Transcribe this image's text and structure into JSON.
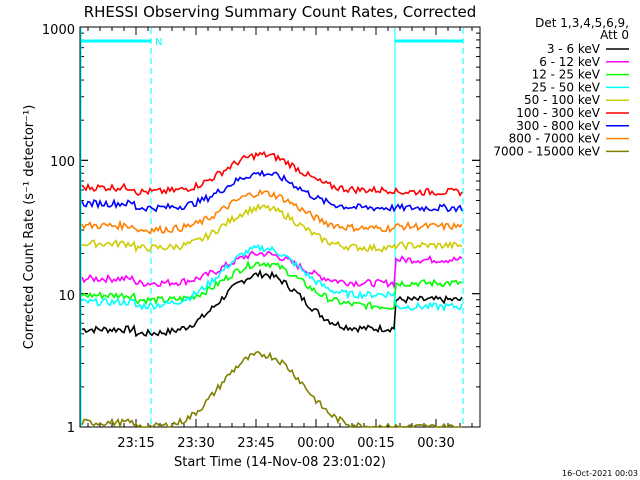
{
  "chart_data": {
    "type": "line",
    "title": "RHESSI Observing Summary Count Rates, Corrected",
    "xlabel": "Start Time (14-Nov-08 23:01:02)",
    "ylabel": "Corrected Count Rate (s⁻¹ detector⁻¹)",
    "yscale": "log",
    "ylim": [
      1,
      1000
    ],
    "y_tick_labels": [
      "1",
      "10",
      "100",
      "1000"
    ],
    "x_tick_labels": [
      "23:15",
      "23:30",
      "23:45",
      "00:00",
      "00:15",
      "00:30"
    ],
    "legend_header": [
      "Det 1,3,4,5,6,9,",
      "Att 0"
    ],
    "legend_placement": "right",
    "annotations": {
      "night_flag": "N",
      "footer": "16-Oct-2021 00:03"
    },
    "grid": false,
    "series": [
      {
        "name": "3 - 6 keV",
        "color": "#000000",
        "values": [
          5,
          14,
          5.5,
          9
        ]
      },
      {
        "name": "6 - 12 keV",
        "color": "#ff00ff",
        "values": [
          12,
          20,
          12,
          18
        ]
      },
      {
        "name": "12 - 25 keV",
        "color": "#00ff00",
        "values": [
          9,
          17,
          8,
          12
        ]
      },
      {
        "name": "25 - 50 keV",
        "color": "#00ffff",
        "values": [
          8,
          22,
          10,
          8
        ]
      },
      {
        "name": "50 - 100 keV",
        "color": "#cccc00",
        "values": [
          22,
          44,
          22,
          23
        ]
      },
      {
        "name": "100 - 300 keV",
        "color": "#ff0000",
        "values": [
          58,
          110,
          60,
          58
        ]
      },
      {
        "name": "300 - 800 keV",
        "color": "#0000ff",
        "values": [
          44,
          80,
          44,
          44
        ]
      },
      {
        "name": "800 - 7000 keV",
        "color": "#ff8000",
        "values": [
          30,
          57,
          31,
          32
        ]
      },
      {
        "name": "7000 - 15000 keV",
        "color": "#808000",
        "values": [
          1,
          3.5,
          1,
          1
        ]
      }
    ]
  }
}
